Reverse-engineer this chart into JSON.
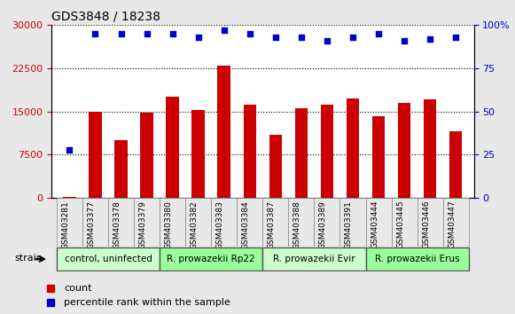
{
  "title": "GDS3848 / 18238",
  "samples": [
    "GSM403281",
    "GSM403377",
    "GSM403378",
    "GSM403379",
    "GSM403380",
    "GSM403382",
    "GSM403383",
    "GSM403384",
    "GSM403387",
    "GSM403388",
    "GSM403389",
    "GSM403391",
    "GSM403444",
    "GSM403445",
    "GSM403446",
    "GSM403447"
  ],
  "bar_values": [
    200,
    15000,
    10000,
    14800,
    17500,
    15200,
    23000,
    16200,
    11000,
    15500,
    16200,
    17200,
    14200,
    16500,
    17100,
    11500
  ],
  "percentile_values": [
    28,
    95,
    95,
    95,
    95,
    93,
    97,
    95,
    93,
    93,
    91,
    93,
    95,
    91,
    92,
    93
  ],
  "bar_color": "#cc0000",
  "dot_color": "#0000cc",
  "ylim_left": [
    0,
    30000
  ],
  "ylim_right": [
    0,
    100
  ],
  "yticks_left": [
    0,
    7500,
    15000,
    22500,
    30000
  ],
  "ytick_labels_left": [
    "0",
    "7500",
    "15000",
    "22500",
    "30000"
  ],
  "yticks_right": [
    0,
    25,
    50,
    75,
    100
  ],
  "ytick_labels_right": [
    "0",
    "25",
    "50",
    "75",
    "100%"
  ],
  "grid_color": "#000000",
  "strain_groups": [
    {
      "label": "control, uninfected",
      "start": 0,
      "end": 3,
      "color": "#ccffcc"
    },
    {
      "label": "R. prowazekii Rp22",
      "start": 4,
      "end": 7,
      "color": "#99ff99"
    },
    {
      "label": "R. prowazekii Evir",
      "start": 8,
      "end": 11,
      "color": "#ccffcc"
    },
    {
      "label": "R. prowazekii Erus",
      "start": 12,
      "end": 15,
      "color": "#99ff99"
    }
  ],
  "legend_count_color": "#cc0000",
  "legend_dot_color": "#0000cc",
  "legend_count_label": "count",
  "legend_dot_label": "percentile rank within the sample",
  "strain_label": "strain",
  "xlabel_color": "#cc0000",
  "ylabel_right_color": "#0000cc",
  "background_color": "#e8e8e8",
  "plot_bg_color": "#ffffff"
}
